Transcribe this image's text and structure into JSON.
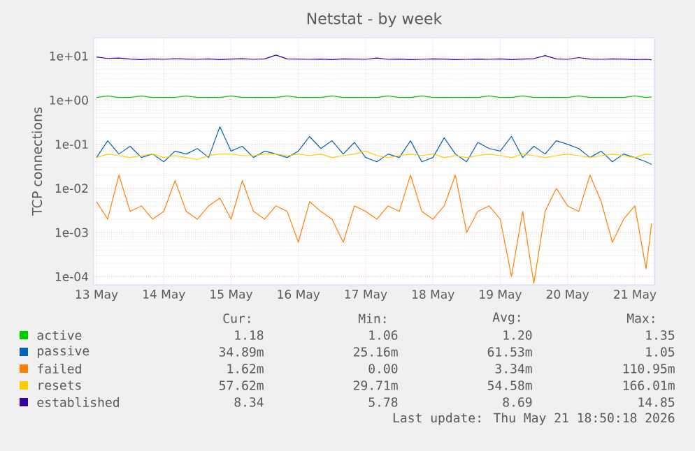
{
  "chart_data": {
    "type": "line",
    "title": "Netstat - by week",
    "ylabel": "TCP connections",
    "x": [
      "2026-05-13T00:00",
      "2026-05-13T04:00",
      "2026-05-13T08:00",
      "2026-05-13T12:00",
      "2026-05-13T16:00",
      "2026-05-13T20:00",
      "2026-05-14T00:00",
      "2026-05-14T04:00",
      "2026-05-14T08:00",
      "2026-05-14T12:00",
      "2026-05-14T16:00",
      "2026-05-14T20:00",
      "2026-05-15T00:00",
      "2026-05-15T04:00",
      "2026-05-15T08:00",
      "2026-05-15T12:00",
      "2026-05-15T16:00",
      "2026-05-15T20:00",
      "2026-05-16T00:00",
      "2026-05-16T04:00",
      "2026-05-16T08:00",
      "2026-05-16T12:00",
      "2026-05-16T16:00",
      "2026-05-16T20:00",
      "2026-05-17T00:00",
      "2026-05-17T04:00",
      "2026-05-17T08:00",
      "2026-05-17T12:00",
      "2026-05-17T16:00",
      "2026-05-17T20:00",
      "2026-05-18T00:00",
      "2026-05-18T04:00",
      "2026-05-18T08:00",
      "2026-05-18T12:00",
      "2026-05-18T16:00",
      "2026-05-18T20:00",
      "2026-05-19T00:00",
      "2026-05-19T04:00",
      "2026-05-19T08:00",
      "2026-05-19T12:00",
      "2026-05-19T16:00",
      "2026-05-19T20:00",
      "2026-05-20T00:00",
      "2026-05-20T04:00",
      "2026-05-20T08:00",
      "2026-05-20T12:00",
      "2026-05-20T16:00",
      "2026-05-20T20:00",
      "2026-05-21T00:00",
      "2026-05-21T04:00",
      "2026-05-21T06:00"
    ],
    "series": [
      {
        "name": "active",
        "color": "#00cc00",
        "values": [
          1.15,
          1.25,
          1.15,
          1.15,
          1.25,
          1.15,
          1.15,
          1.15,
          1.25,
          1.15,
          1.15,
          1.15,
          1.25,
          1.15,
          1.15,
          1.15,
          1.15,
          1.25,
          1.15,
          1.15,
          1.15,
          1.25,
          1.15,
          1.15,
          1.15,
          1.15,
          1.25,
          1.15,
          1.15,
          1.25,
          1.15,
          1.15,
          1.15,
          1.15,
          1.15,
          1.25,
          1.15,
          1.15,
          1.25,
          1.15,
          1.15,
          1.15,
          1.15,
          1.25,
          1.15,
          1.15,
          1.15,
          1.15,
          1.25,
          1.15,
          1.18
        ]
      },
      {
        "name": "passive",
        "color": "#0066b3",
        "values": [
          0.05,
          0.12,
          0.06,
          0.09,
          0.05,
          0.06,
          0.04,
          0.07,
          0.06,
          0.08,
          0.05,
          0.25,
          0.07,
          0.09,
          0.05,
          0.07,
          0.06,
          0.05,
          0.07,
          0.15,
          0.08,
          0.12,
          0.06,
          0.11,
          0.05,
          0.04,
          0.06,
          0.05,
          0.12,
          0.04,
          0.05,
          0.14,
          0.06,
          0.04,
          0.11,
          0.08,
          0.07,
          0.15,
          0.05,
          0.09,
          0.06,
          0.12,
          0.1,
          0.08,
          0.05,
          0.07,
          0.04,
          0.06,
          0.05,
          0.04,
          0.035
        ]
      },
      {
        "name": "failed",
        "color": "#ff8000",
        "values": [
          0.005,
          0.002,
          0.02,
          0.003,
          0.004,
          0.002,
          0.003,
          0.015,
          0.003,
          0.002,
          0.004,
          0.006,
          0.002,
          0.015,
          0.003,
          0.002,
          0.004,
          0.003,
          0.0006,
          0.005,
          0.003,
          0.002,
          0.0006,
          0.004,
          0.003,
          0.002,
          0.004,
          0.003,
          0.02,
          0.003,
          0.002,
          0.004,
          0.02,
          0.001,
          0.003,
          0.004,
          0.002,
          0.0001,
          0.003,
          7e-05,
          0.003,
          0.01,
          0.004,
          0.003,
          0.02,
          0.005,
          0.0006,
          0.002,
          0.004,
          0.00015,
          0.0016
        ]
      },
      {
        "name": "resets",
        "color": "#ffcc00",
        "values": [
          0.05,
          0.06,
          0.055,
          0.05,
          0.055,
          0.06,
          0.05,
          0.055,
          0.05,
          0.045,
          0.055,
          0.06,
          0.06,
          0.055,
          0.055,
          0.06,
          0.06,
          0.055,
          0.06,
          0.055,
          0.06,
          0.05,
          0.055,
          0.06,
          0.07,
          0.055,
          0.05,
          0.055,
          0.06,
          0.055,
          0.06,
          0.05,
          0.055,
          0.05,
          0.055,
          0.06,
          0.055,
          0.05,
          0.06,
          0.055,
          0.05,
          0.055,
          0.06,
          0.055,
          0.05,
          0.055,
          0.06,
          0.055,
          0.05,
          0.06,
          0.058
        ]
      },
      {
        "name": "established",
        "color": "#330099",
        "values": [
          9.5,
          8.8,
          9.0,
          8.5,
          8.3,
          8.6,
          8.4,
          8.7,
          8.5,
          8.4,
          8.6,
          8.3,
          8.5,
          8.7,
          8.4,
          8.6,
          10.5,
          8.6,
          8.5,
          8.4,
          8.5,
          8.3,
          8.6,
          8.5,
          8.4,
          9.0,
          8.4,
          8.5,
          8.3,
          8.4,
          8.6,
          8.5,
          8.3,
          8.4,
          8.5,
          8.4,
          8.6,
          8.3,
          8.5,
          8.7,
          10.2,
          8.6,
          8.4,
          9.2,
          8.5,
          8.4,
          8.6,
          8.5,
          8.3,
          8.4,
          8.2
        ]
      }
    ],
    "log": "y",
    "xlim": [
      "2026-05-12T23:00",
      "2026-05-21T07:00"
    ],
    "ylim": [
      6.5e-05,
      26
    ],
    "xticks": [
      {
        "value": "2026-05-13",
        "label": "13 May"
      },
      {
        "value": "2026-05-14",
        "label": "14 May"
      },
      {
        "value": "2026-05-15",
        "label": "15 May"
      },
      {
        "value": "2026-05-16",
        "label": "16 May"
      },
      {
        "value": "2026-05-17",
        "label": "17 May"
      },
      {
        "value": "2026-05-18",
        "label": "18 May"
      },
      {
        "value": "2026-05-19",
        "label": "19 May"
      },
      {
        "value": "2026-05-20",
        "label": "20 May"
      },
      {
        "value": "2026-05-21",
        "label": "21 May"
      }
    ],
    "yticks": [
      {
        "value": 0.0001,
        "label": "1e-04"
      },
      {
        "value": 0.001,
        "label": "1e-03"
      },
      {
        "value": 0.01,
        "label": "1e-02"
      },
      {
        "value": 0.1,
        "label": "1e-01"
      },
      {
        "value": 1,
        "label": "1e+00"
      },
      {
        "value": 10,
        "label": "1e+01"
      }
    ],
    "grid": true,
    "legend": "bottom",
    "marker": "none",
    "line_style": "solid",
    "annotations": [
      "Cur:",
      "Min:",
      "Avg:",
      "Max:",
      "1.18",
      "1.06",
      "1.20",
      "1.35",
      "34.89m",
      "25.16m",
      "61.53m",
      "1.05",
      "1.62m",
      "0.00",
      "3.34m",
      "110.95m",
      "57.62m",
      "29.71m",
      "54.58m",
      "166.01m",
      "8.34",
      "5.78",
      "8.69",
      "14.85",
      "Last update: Thu May 21 18:50:18 2026"
    ]
  }
}
